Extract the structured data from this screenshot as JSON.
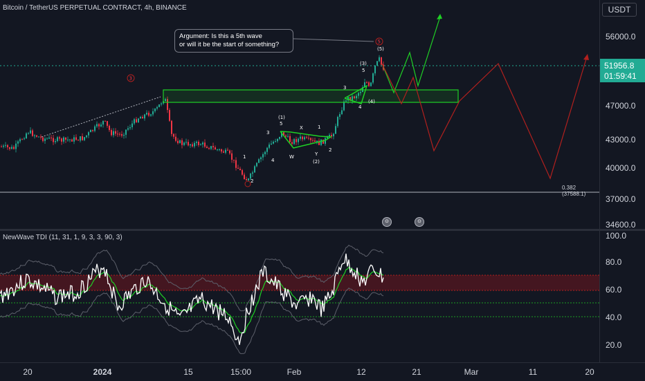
{
  "chart": {
    "title": "Bitcoin / TetherUS PERPETUAL CONTRACT, 4h, BINANCE",
    "currency": "USDT",
    "last_price": "51956.8",
    "countdown": "01:59:41",
    "price_axis": [
      "56000.0",
      "51956.8",
      "47000.0",
      "43000.0",
      "40000.0",
      "37000.0",
      "34600.0"
    ],
    "callout": {
      "line1": "Argument: Is this a 5th wave",
      "line2": "or will it be the start of something?"
    },
    "fib_label": "0.382 (37588.1)",
    "wave_labels": {
      "c3_red": "3",
      "w1": "1",
      "w2": "2",
      "w3": "3",
      "w4": "4",
      "p1": "(1)",
      "p5": "5",
      "x": "X",
      "w": "W",
      "y": "Y",
      "p2": "(2)",
      "s1": "1",
      "s2": "2",
      "s3": "3",
      "s4": "4",
      "s5": "5",
      "p3": "(3)",
      "p4": "(4)",
      "p5b": "(5)",
      "c5_red": "5"
    },
    "colors": {
      "up": "#22ab94",
      "down": "#f23645",
      "green_line": "#1fd025",
      "red_line": "#b2201e"
    }
  },
  "indicator": {
    "title": "NewWave TDI (11, 31, 1, 9, 3, 3, 90, 3)",
    "axis": [
      "100.0",
      "80.0",
      "60.0",
      "40.0",
      "20.0"
    ]
  },
  "time_axis": [
    "20",
    "2024",
    "15",
    "15:00",
    "Feb",
    "12",
    "21",
    "Mar",
    "11",
    "20"
  ]
}
